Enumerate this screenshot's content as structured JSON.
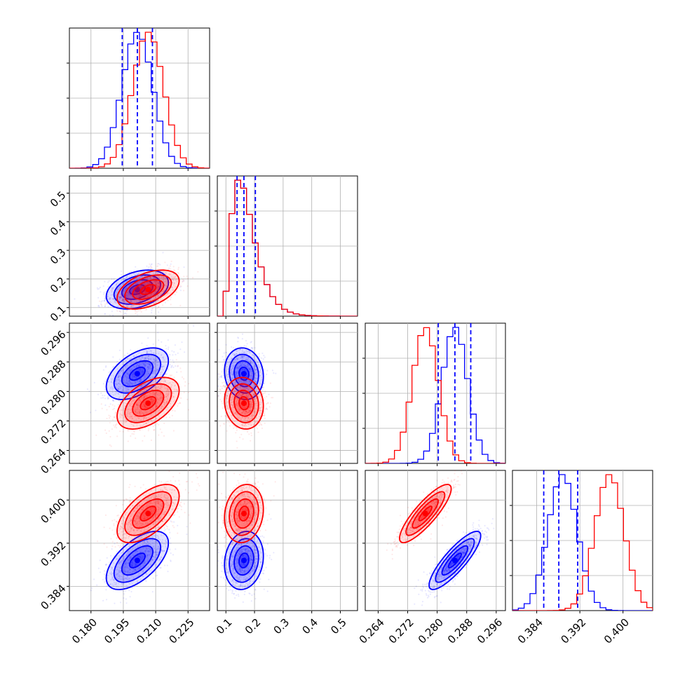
{
  "chart_data": {
    "type": "corner",
    "grid": true,
    "params": [
      {
        "range": [
          0.17,
          0.235
        ],
        "ticks": [
          0.18,
          0.195,
          0.21,
          0.225
        ],
        "tick_labels": [
          "0.180",
          "0.195",
          "0.210",
          "0.225"
        ]
      },
      {
        "range": [
          0.07,
          0.56
        ],
        "ticks": [
          0.1,
          0.2,
          0.3,
          0.4,
          0.5
        ],
        "tick_labels": [
          "0.1",
          "0.2",
          "0.3",
          "0.4",
          "0.5"
        ]
      },
      {
        "range": [
          0.2605,
          0.2985
        ],
        "ticks": [
          0.264,
          0.272,
          0.28,
          0.288,
          0.296
        ],
        "tick_labels": [
          "0.264",
          "0.272",
          "0.280",
          "0.288",
          "0.296"
        ]
      },
      {
        "range": [
          0.3795,
          0.4055
        ],
        "ticks": [
          0.384,
          0.392,
          0.4
        ],
        "tick_labels": [
          "0.384",
          "0.392",
          "0.400"
        ]
      }
    ],
    "series": [
      {
        "color": "#0000ff",
        "mean": [
          0.2015,
          0.163,
          0.2848,
          0.3888
        ],
        "std": [
          0.0072,
          0.034,
          0.0035,
          0.0027
        ],
        "corr": [
          [
            0,
            1,
            0.35
          ],
          [
            0,
            2,
            0.5
          ],
          [
            0,
            3,
            0.6
          ],
          [
            1,
            2,
            -0.1
          ],
          [
            1,
            3,
            0.15
          ],
          [
            2,
            3,
            0.85
          ]
        ]
      },
      {
        "color": "#ff0000",
        "mean": [
          0.2065,
          0.163,
          0.2768,
          0.3975
        ],
        "std": [
          0.0072,
          0.034,
          0.0035,
          0.0027
        ],
        "corr": [
          [
            0,
            1,
            0.45
          ],
          [
            0,
            2,
            0.5
          ],
          [
            0,
            3,
            0.6
          ],
          [
            1,
            2,
            -0.1
          ],
          [
            1,
            3,
            0.15
          ],
          [
            2,
            3,
            0.85
          ]
        ]
      }
    ],
    "quantile_lines": [
      [
        0.1945,
        0.2015,
        0.2085
      ],
      [
        0.139,
        0.163,
        0.203
      ],
      [
        0.2803,
        0.2848,
        0.2891
      ],
      [
        0.3853,
        0.3881,
        0.3916
      ]
    ],
    "quantile_line_color": "#0000ff",
    "contour_levels_sigma": [
      0.5,
      1.0,
      1.5,
      2.0
    ]
  }
}
